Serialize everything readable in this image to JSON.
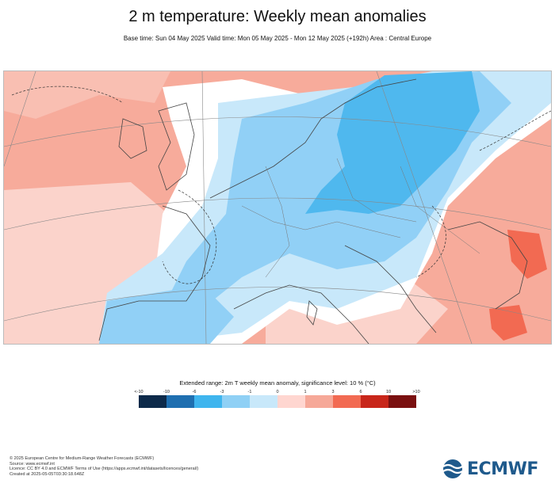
{
  "title": "2 m temperature: Weekly mean anomalies",
  "subtitle": "Base time: Sun 04 May 2025 Valid time: Mon 05 May 2025 - Mon 12 May 2025 (+192h) Area : Central Europe",
  "legend": {
    "title": "Extended range: 2m T weekly mean anomaly, significance level: 10 % (°C)",
    "labels": [
      "<-10",
      "-10",
      "-6",
      "-3",
      "-1",
      "0",
      "1",
      "3",
      "6",
      "10",
      ">10"
    ],
    "colors": [
      "#0d2a4a",
      "#1f6fb0",
      "#3fb5ee",
      "#8fd0f5",
      "#c8e8fa",
      "#ffd6d0",
      "#f6a898",
      "#f26a52",
      "#c8261a",
      "#7a1010"
    ]
  },
  "map_colors": {
    "warm_light": "#fbd3cb",
    "warm": "#f7ab9b",
    "warm_strong": "#f26a52",
    "cool_light": "#c8e8fa",
    "cool": "#91d0f6",
    "cool_strong": "#3fb5ee",
    "coast": "#555555",
    "border": "#777777"
  },
  "footer": {
    "line1": "© 2025 European Centre for Medium-Range Weather Forecasts (ECMWF)",
    "line2": "Source: www.ecmwf.int",
    "line3": "Licence: CC BY 4.0 and ECMWF Terms of Use (https://apps.ecmwf.int/datasets/licences/general/)",
    "line4": "Created at 2025-05-05T03:30:18.648Z"
  },
  "logo": {
    "text": "ECMWF",
    "icon": "ecmwf-logo-icon"
  }
}
